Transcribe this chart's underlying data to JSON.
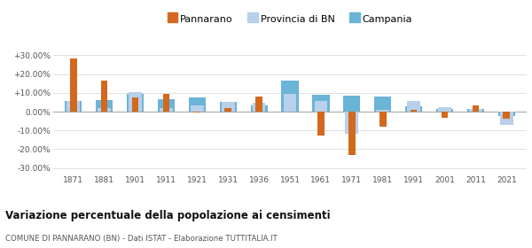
{
  "years": [
    1871,
    1881,
    1901,
    1911,
    1921,
    1931,
    1936,
    1951,
    1961,
    1971,
    1981,
    1991,
    2001,
    2011,
    2021
  ],
  "pannarano": [
    28.5,
    16.5,
    7.5,
    9.5,
    -0.5,
    2.0,
    8.0,
    0.2,
    -12.5,
    -23.0,
    -8.0,
    0.8,
    -3.5,
    3.5,
    -4.0
  ],
  "provincia_bn": [
    5.5,
    2.0,
    10.5,
    2.0,
    3.5,
    5.0,
    4.5,
    9.5,
    5.5,
    -12.0,
    1.0,
    5.5,
    2.5,
    1.5,
    -7.0
  ],
  "campania": [
    5.5,
    6.0,
    9.5,
    6.5,
    7.5,
    5.0,
    3.5,
    16.5,
    9.0,
    8.5,
    8.0,
    3.0,
    1.5,
    1.5,
    -2.5
  ],
  "color_pannarano": "#d2691e",
  "color_provincia": "#b8d0eb",
  "color_campania": "#6ab4d8",
  "title": "Variazione percentuale della popolazione ai censimenti",
  "subtitle": "COMUNE DI PANNARANO (BN) - Dati ISTAT - Elaborazione TUTTITALIA.IT",
  "ylim": [
    -33,
    33
  ],
  "yticks": [
    -30,
    -20,
    -10,
    0,
    10,
    20,
    30
  ],
  "ytick_labels": [
    "-30.00%",
    "-20.00%",
    "-10.00%",
    "0.00%",
    "+10.00%",
    "+20.00%",
    "+30.00%"
  ],
  "background_color": "#ffffff",
  "grid_color": "#e0e0e0"
}
